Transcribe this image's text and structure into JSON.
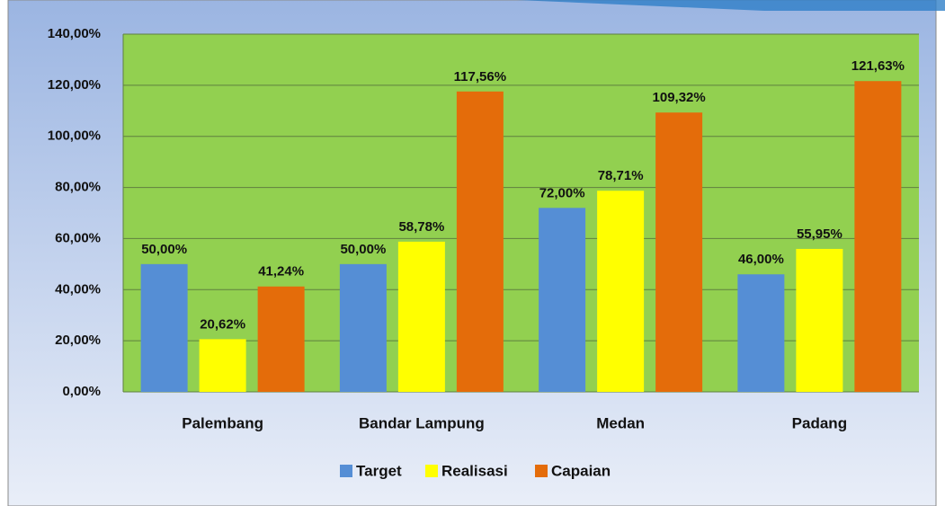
{
  "chart_data": {
    "type": "bar",
    "categories": [
      "Palembang",
      "Bandar Lampung",
      "Medan",
      "Padang"
    ],
    "series": [
      {
        "name": "Target",
        "color": "#558ed5",
        "values": [
          50,
          50,
          72,
          46
        ],
        "value_labels": [
          "50,00%",
          "50,00%",
          "72,00%",
          "46,00%"
        ]
      },
      {
        "name": "Realisasi",
        "color": "#ffff00",
        "values": [
          20.62,
          58.78,
          78.71,
          55.95
        ],
        "value_labels": [
          "20,62%",
          "58,78%",
          "78,71%",
          "55,95%"
        ]
      },
      {
        "name": "Capaian",
        "color": "#e46c0a",
        "values": [
          41.24,
          117.56,
          109.32,
          121.63
        ],
        "value_labels": [
          "41,24%",
          "117,56%",
          "109,32%",
          "121,63%"
        ]
      }
    ],
    "ylim": [
      0,
      140
    ],
    "yticks": [
      {
        "value": 0,
        "label": "0,00%"
      },
      {
        "value": 20,
        "label": "20,00%"
      },
      {
        "value": 40,
        "label": "40,00%"
      },
      {
        "value": 60,
        "label": "60,00%"
      },
      {
        "value": 80,
        "label": "80,00%"
      },
      {
        "value": 100,
        "label": "100,00%"
      },
      {
        "value": 120,
        "label": "120,00%"
      },
      {
        "value": 140,
        "label": "140,00%"
      }
    ],
    "grid": true,
    "legend": "bottom",
    "plot_background": "#92d050"
  }
}
